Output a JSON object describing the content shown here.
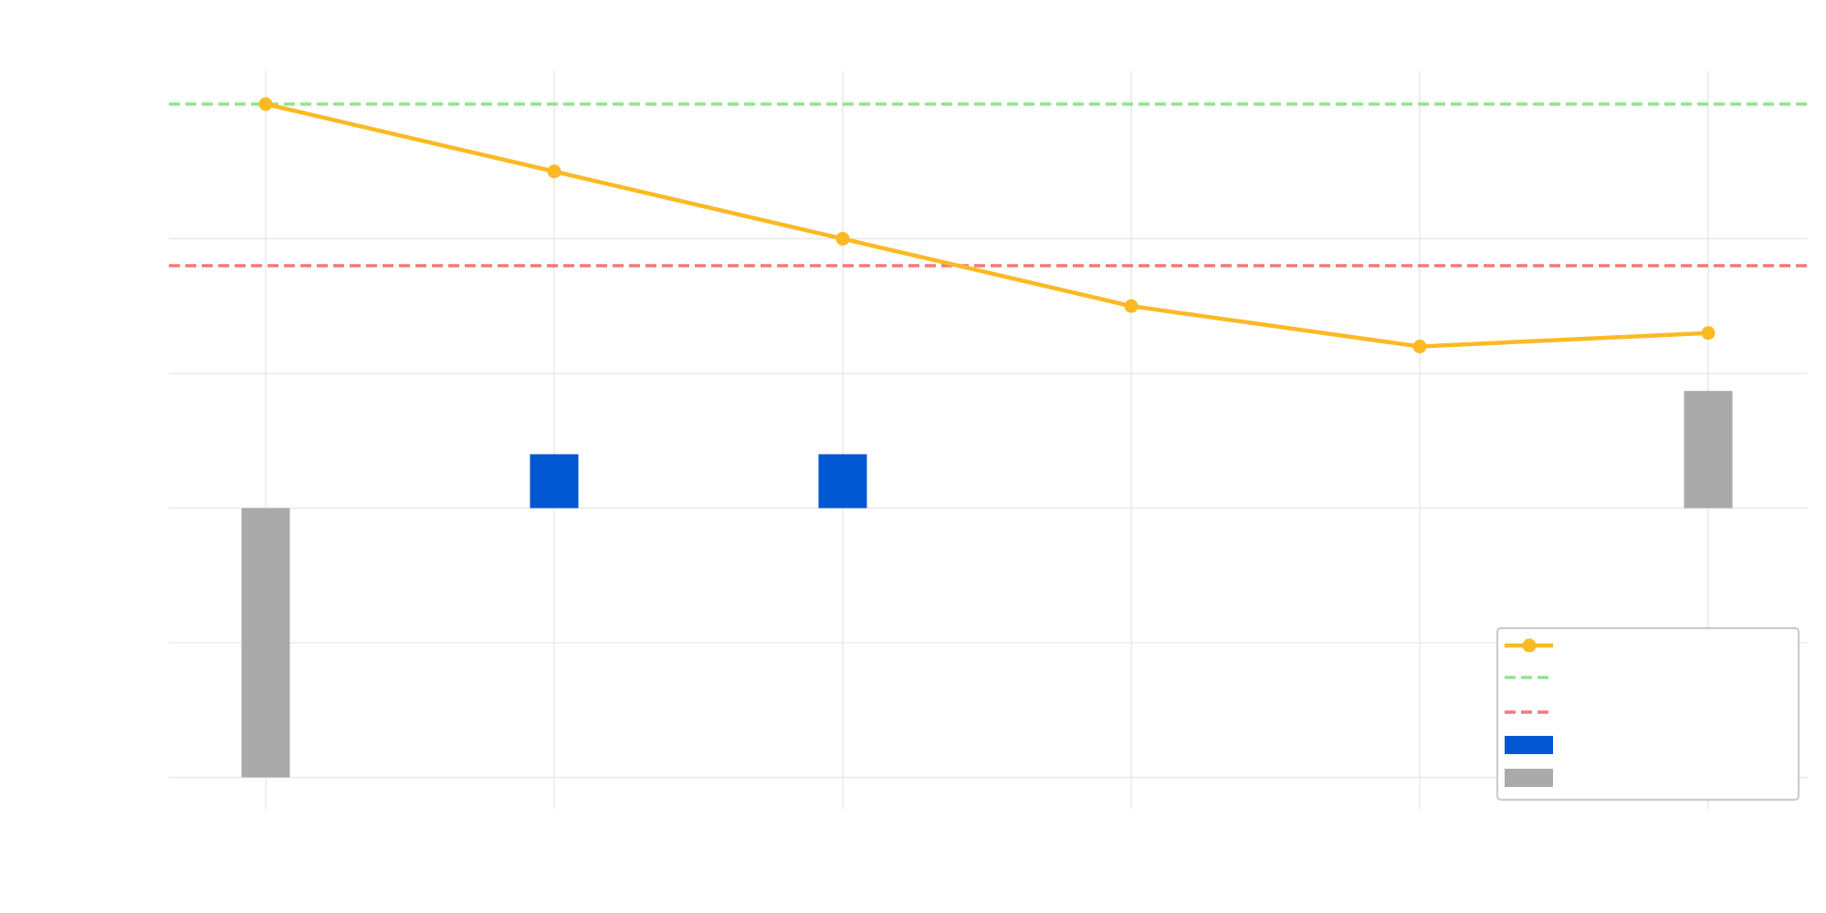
{
  "chart_data": {
    "type": "line",
    "categories": [
      "",
      "",
      "",
      "",
      "",
      ""
    ],
    "xlim": [
      -0.34,
      5.34
    ],
    "ylim": [
      -0.225,
      0.325
    ],
    "grid": true,
    "legend": "bottom-right",
    "series": [
      {
        "kind": "line",
        "values": [
          0.3,
          0.25,
          0.2,
          0.15,
          0.12,
          0.13
        ],
        "color": "#fbb924"
      },
      {
        "kind": "bar",
        "values": [
          -0.2,
          0.04,
          0.04,
          0,
          0,
          0.087
        ],
        "colors": [
          "#aaaaaa",
          "#0057d1",
          "#0057d1",
          "#0057d1",
          "#0057d1",
          "#aaaaaa"
        ]
      }
    ],
    "reference_lines": [
      {
        "y": 0.3,
        "color": "#90e58a",
        "style": "dashed"
      },
      {
        "y": 0.18,
        "color": "#f07a7a",
        "style": "dashed"
      }
    ],
    "legend_entries": [
      {
        "kind": "line-marker",
        "label": "",
        "color": "#fbb924"
      },
      {
        "kind": "dashed",
        "label": "",
        "color": "#90e58a"
      },
      {
        "kind": "dashed",
        "label": "",
        "color": "#f07a7a"
      },
      {
        "kind": "patch",
        "label": "",
        "color": "#0057d1"
      },
      {
        "kind": "patch",
        "label": "",
        "color": "#aaaaaa"
      }
    ]
  }
}
